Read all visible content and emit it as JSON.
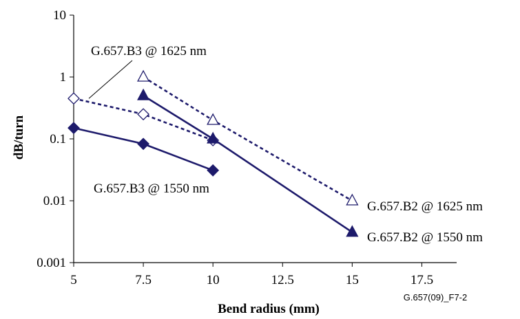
{
  "chart_data": {
    "type": "line",
    "title": "",
    "xlabel": "Bend radius (mm)",
    "ylabel": "dB/turn",
    "x_scale": "linear",
    "y_scale": "log",
    "xlim": [
      5,
      18.75
    ],
    "ylim": [
      0.001,
      10
    ],
    "x_ticks": [
      "5",
      "7.5",
      "10",
      "12.5",
      "15",
      "17.5"
    ],
    "y_ticks": [
      "10",
      "1",
      "0.1",
      "0.01",
      "0.001"
    ],
    "grid": false,
    "series": [
      {
        "name": "G.657.B3  @ 1625 nm",
        "marker": "diamond-open",
        "line": "dashed",
        "points": [
          [
            5,
            0.45
          ],
          [
            7.5,
            0.25
          ],
          [
            10,
            0.095
          ]
        ]
      },
      {
        "name": "G.657.B3  @ 1550 nm",
        "marker": "diamond-filled",
        "line": "solid",
        "points": [
          [
            5,
            0.15
          ],
          [
            7.5,
            0.083
          ],
          [
            10,
            0.031
          ]
        ]
      },
      {
        "name": "G.657.B2  @ 1625 nm",
        "marker": "triangle-open",
        "line": "dashed",
        "points": [
          [
            7.5,
            1.0
          ],
          [
            10,
            0.2
          ],
          [
            15,
            0.01
          ]
        ]
      },
      {
        "name": "G.657.B2  @ 1550 nm",
        "marker": "triangle-filled",
        "line": "solid",
        "points": [
          [
            7.5,
            0.5
          ],
          [
            10,
            0.1
          ],
          [
            15,
            0.0031
          ]
        ]
      }
    ],
    "colors": {
      "series": "#1d1a6b",
      "axis": "#000000"
    },
    "figure_id": "G.657(09)_F7-2"
  }
}
